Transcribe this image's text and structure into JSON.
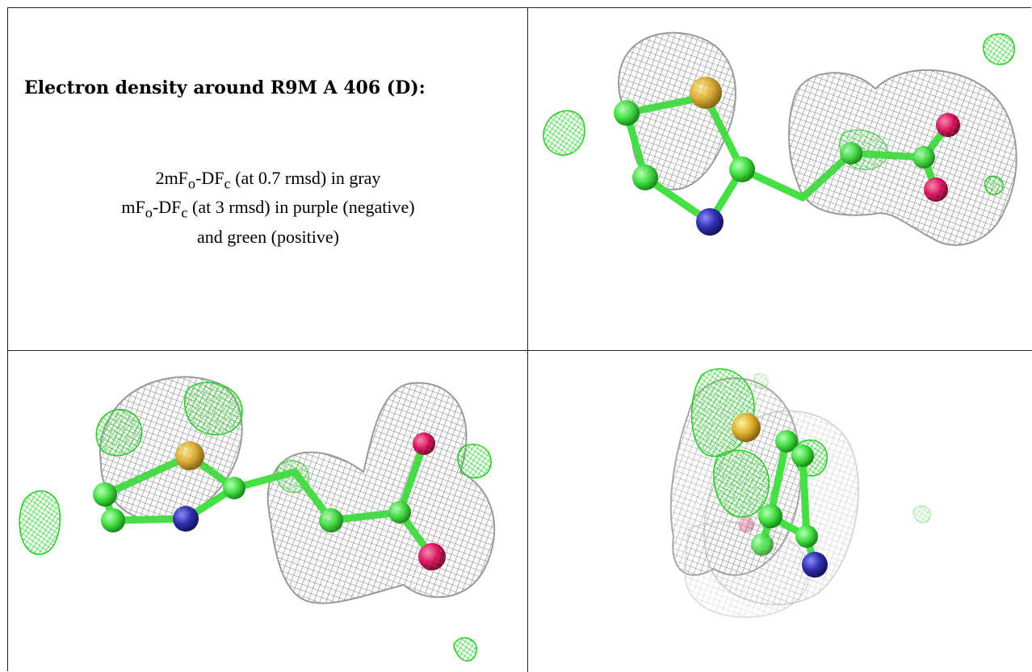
{
  "legend": {
    "title": "Electron density around R9M A 406 (D):",
    "line1_a": "2mF",
    "line1_sub1": "o",
    "line1_b": "-DF",
    "line1_sub2": "c",
    "line1_c": " (at 0.7 rmsd) in gray",
    "line2_a": "mF",
    "line2_sub1": "o",
    "line2_b": "-DF",
    "line2_sub2": "c",
    "line2_c": " (at 3 rmsd) in purple (negative)",
    "line3": "and green (positive)"
  },
  "colors": {
    "mesh_gray": "#a8a8a8",
    "mesh_green": "#22dd22",
    "carbon": "#44e044",
    "sulfur": "#e0b030",
    "nitrogen": "#3030b0",
    "oxygen": "#e01060"
  },
  "views": [
    {
      "name": "view-1",
      "icon": "molecule-density-icon"
    },
    {
      "name": "view-2",
      "icon": "molecule-density-icon"
    },
    {
      "name": "view-3",
      "icon": "molecule-density-icon"
    }
  ]
}
